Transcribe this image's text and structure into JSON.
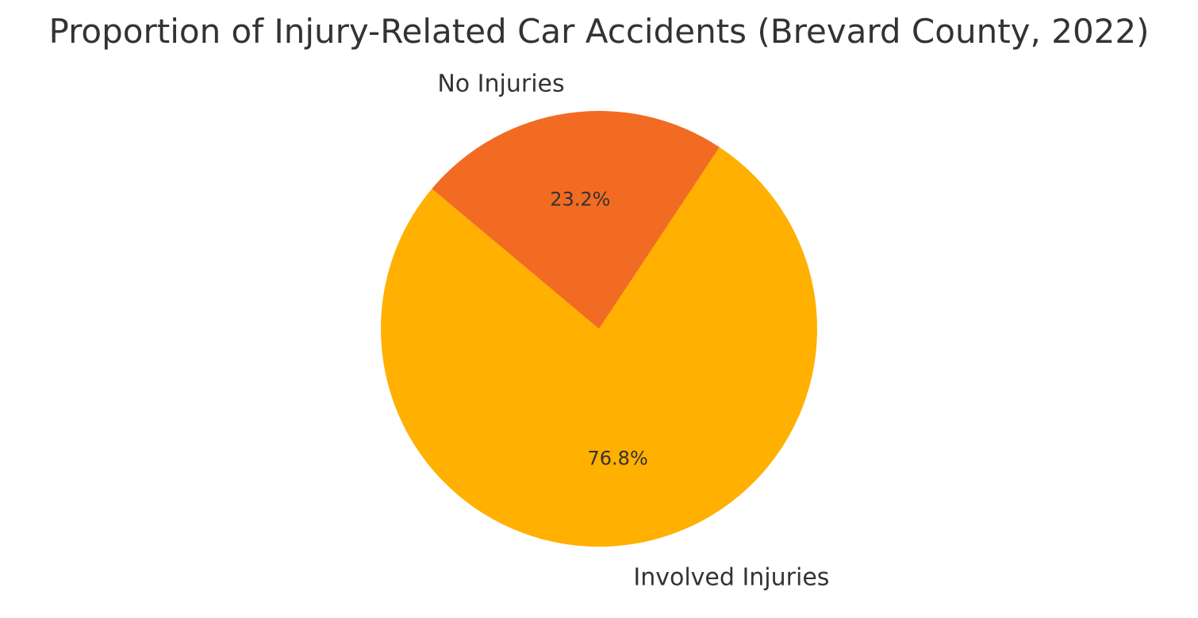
{
  "chart_data": {
    "type": "pie",
    "title": "Proportion of Injury-Related Car Accidents (Brevard County, 2022)",
    "slices": [
      {
        "label": "Involved Injuries",
        "value": 76.8,
        "value_label": "76.8%",
        "color": "#FFB000"
      },
      {
        "label": "No Injuries",
        "value": 23.2,
        "value_label": "23.2%",
        "color": "#F26B22"
      }
    ],
    "legend": "none"
  }
}
